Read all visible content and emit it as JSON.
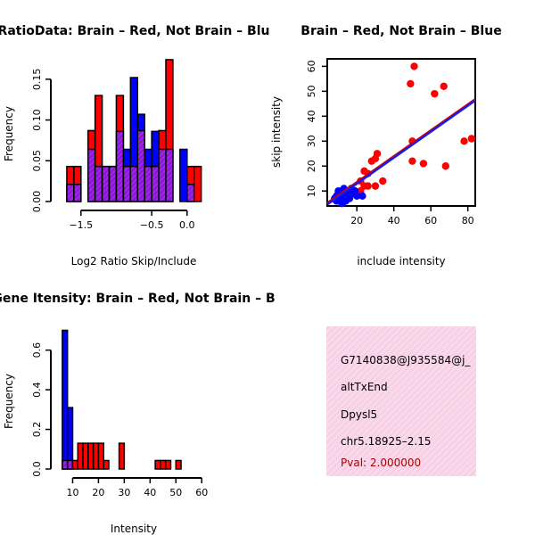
{
  "colors": {
    "brain": "#ff0000",
    "not_brain": "#0000ff",
    "overlap": "#a020f0",
    "overlap_hatch": "#5a1a80",
    "panel_bg": "#f8d8ea",
    "pval": "#aa0000",
    "reg_blue": "#1a1aee",
    "reg_red": "#cc0000"
  },
  "chart_data": [
    {
      "type": "bar",
      "name": "ratio-histogram",
      "title": "RatioData: Brain – Red, Not Brain – Blu",
      "xlabel": "Log2 Ratio Skip/Include",
      "ylabel": "Frequency",
      "xlim": [
        -1.8,
        0.28
      ],
      "ylim": [
        0,
        0.175
      ],
      "xticks": [
        -1.5,
        -0.5,
        0.0
      ],
      "xtick_labels": [
        "−1.5",
        "−0.5",
        "0.0"
      ],
      "yticks": [
        0,
        0.05,
        0.1,
        0.15
      ],
      "ytick_labels": [
        "0.00",
        "0.05",
        "0.10",
        "0.15"
      ],
      "bin_width": 0.1,
      "bin_start": -1.7,
      "series": [
        {
          "name": "Brain",
          "values": [
            0.043,
            0.043,
            0,
            0.087,
            0.13,
            0.043,
            0.043,
            0.13,
            0.043,
            0.043,
            0.087,
            0.043,
            0.043,
            0.087,
            0.174,
            0,
            0,
            0.043,
            0.043
          ]
        },
        {
          "name": "Not Brain",
          "values": [
            0.021,
            0.021,
            0,
            0.064,
            0.043,
            0.043,
            0.043,
            0.086,
            0.064,
            0.152,
            0.107,
            0.064,
            0.086,
            0.064,
            0.064,
            0,
            0.064,
            0.021,
            0
          ]
        }
      ]
    },
    {
      "type": "scatter",
      "name": "intensity-scatter",
      "title": "Brain – Red, Not Brain – Blue",
      "xlabel": "include intensity",
      "ylabel": "skip intensity",
      "xlim": [
        4,
        84
      ],
      "ylim": [
        4,
        63
      ],
      "xticks": [
        20,
        40,
        60,
        80
      ],
      "yticks": [
        10,
        20,
        30,
        40,
        50,
        60
      ],
      "series": [
        {
          "name": "Brain",
          "points": [
            [
              51,
              60
            ],
            [
              49,
              53
            ],
            [
              67,
              52
            ],
            [
              62,
              49
            ],
            [
              50,
              30
            ],
            [
              78,
              30
            ],
            [
              82,
              31
            ],
            [
              68,
              20
            ],
            [
              56,
              21
            ],
            [
              50,
              22
            ],
            [
              31,
              25
            ],
            [
              28,
              22
            ],
            [
              30,
              23
            ],
            [
              24,
              18
            ],
            [
              26,
              17
            ],
            [
              34,
              14
            ],
            [
              30,
              12
            ],
            [
              26,
              12
            ],
            [
              22,
              14
            ],
            [
              24,
              12
            ],
            [
              22,
              10
            ]
          ]
        },
        {
          "name": "Not Brain",
          "points": [
            [
              8,
              7
            ],
            [
              9,
              8
            ],
            [
              10,
              9
            ],
            [
              11,
              8
            ],
            [
              12,
              7
            ],
            [
              13,
              9
            ],
            [
              12,
              10
            ],
            [
              14,
              10
            ],
            [
              15,
              9
            ],
            [
              16,
              10
            ],
            [
              11,
              6
            ],
            [
              14,
              6
            ],
            [
              16,
              7
            ],
            [
              18,
              9
            ],
            [
              20,
              8
            ],
            [
              23,
              8
            ],
            [
              10,
              10
            ],
            [
              13,
              11
            ],
            [
              17,
              11
            ],
            [
              19,
              10
            ],
            [
              9,
              6
            ],
            [
              12,
              5
            ]
          ]
        }
      ],
      "regression": [
        {
          "name": "Brain",
          "from": [
            4,
            5.2
          ],
          "to": [
            84,
            46.8
          ]
        },
        {
          "name": "Not Brain",
          "from": [
            4,
            4.6
          ],
          "to": [
            84,
            46.3
          ]
        }
      ]
    },
    {
      "type": "bar",
      "name": "intensity-histogram",
      "title": "Gene Itensity: Brain – Red, Not Brain – B",
      "xlabel": "Intensity",
      "ylabel": "Frequency",
      "xlim": [
        5,
        62
      ],
      "ylim": [
        0,
        0.72
      ],
      "xticks": [
        10,
        20,
        30,
        40,
        50,
        60
      ],
      "yticks": [
        0,
        0.2,
        0.4,
        0.6
      ],
      "ytick_labels": [
        "0.0",
        "0.2",
        "0.4",
        "0.6"
      ],
      "bin_width": 2,
      "bin_start": 6,
      "series": [
        {
          "name": "Brain",
          "values": [
            0.043,
            0.043,
            0.043,
            0.13,
            0.13,
            0.13,
            0.13,
            0.13,
            0.043,
            0,
            0,
            0.13,
            0,
            0,
            0,
            0,
            0,
            0,
            0.043,
            0.043,
            0.043,
            0,
            0.043
          ]
        },
        {
          "name": "Not Brain",
          "values": [
            0.7,
            0.31,
            0,
            0,
            0,
            0,
            0,
            0,
            0,
            0,
            0,
            0,
            0,
            0,
            0,
            0,
            0,
            0,
            0,
            0,
            0,
            0,
            0
          ]
        }
      ]
    }
  ],
  "info": {
    "id": "G7140838@J935584@j_",
    "event_type": "altTxEnd",
    "gene": "Dpysl5",
    "location": "chr5.18925–2.15",
    "pval": "Pval: 2.000000"
  }
}
